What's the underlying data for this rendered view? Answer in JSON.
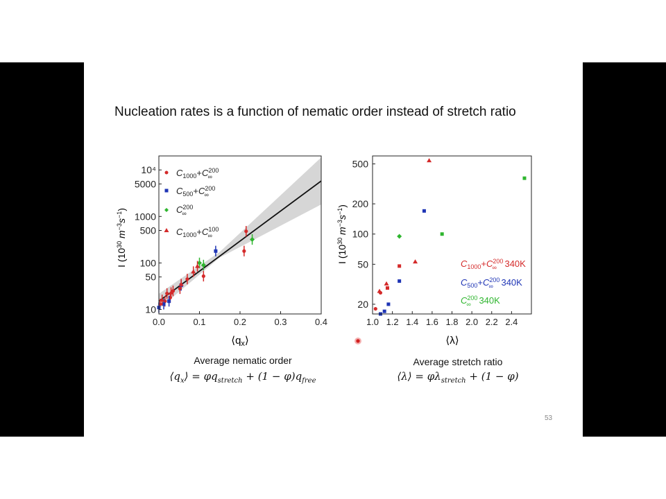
{
  "slide": {
    "title": "Nucleation rates is a function of nematic order instead of stretch ratio",
    "page_number": "53",
    "left_caption": "Average nematic order",
    "left_formula": "⟨qx⟩ = φqstretch + (1 − φ)qfree",
    "right_caption": "Average stretch ratio",
    "right_formula": "⟨λ⟩ = φλstretch + (1 − φ)"
  },
  "chart_data": [
    {
      "type": "scatter",
      "xlabel": "⟨qx⟩",
      "ylabel": "I (10^30 m^-3 s^-1)",
      "xlim": [
        0.0,
        0.4
      ],
      "ylim": [
        8,
        20000
      ],
      "yscale": "log",
      "x_ticks": [
        "0.0",
        "0.1",
        "0.2",
        "0.3",
        "0.4"
      ],
      "y_ticks": [
        {
          "value": 10,
          "label": "10"
        },
        {
          "value": 50,
          "label": "50"
        },
        {
          "value": 100,
          "label": "100"
        },
        {
          "value": 500,
          "label": "500"
        },
        {
          "value": 1000,
          "label": "1000"
        },
        {
          "value": 5000,
          "label": "5000"
        },
        {
          "value": 10000,
          "label": "10⁴"
        }
      ],
      "legend_position": "top-left",
      "fit_line": {
        "x": [
          0.0,
          0.4
        ],
        "y": [
          15,
          5800
        ],
        "band": "gray confidence band"
      },
      "series": [
        {
          "name": "C1000+C∞200",
          "color": "#d42a2a",
          "marker": "circle",
          "points": [
            [
              0.003,
              13
            ],
            [
              0.015,
              15
            ],
            [
              0.02,
              22
            ],
            [
              0.028,
              18
            ],
            [
              0.035,
              25
            ],
            [
              0.052,
              28
            ],
            [
              0.07,
              45
            ],
            [
              0.11,
              52
            ],
            [
              0.21,
              180
            ],
            [
              0.215,
              480
            ]
          ]
        },
        {
          "name": "C500+C∞200",
          "color": "#1f35b5",
          "marker": "square",
          "points": [
            [
              0.0,
              11
            ],
            [
              0.012,
              13
            ],
            [
              0.025,
              15
            ],
            [
              0.055,
              33
            ],
            [
              0.14,
              180
            ]
          ]
        },
        {
          "name": "C∞200",
          "color": "#2eb52e",
          "marker": "diamond",
          "points": [
            [
              0.1,
              100
            ],
            [
              0.11,
              90
            ],
            [
              0.23,
              320
            ]
          ]
        },
        {
          "name": "C1000+C∞100",
          "color": "#d42a2a",
          "marker": "triangle",
          "points": [
            [
              0.008,
              16
            ],
            [
              0.03,
              23
            ],
            [
              0.055,
              35
            ],
            [
              0.085,
              65
            ],
            [
              0.095,
              85
            ]
          ]
        }
      ]
    },
    {
      "type": "scatter",
      "xlabel": "⟨λ⟩",
      "ylabel": "I (10^30 m^-3 s^-1)",
      "xlim": [
        1.0,
        2.6
      ],
      "ylim": [
        16,
        600
      ],
      "yscale": "log",
      "x_ticks": [
        "1.0",
        "1.2",
        "1.4",
        "1.6",
        "1.8",
        "2.0",
        "2.2",
        "2.4"
      ],
      "y_ticks": [
        {
          "value": 20,
          "label": "20"
        },
        {
          "value": 50,
          "label": "50"
        },
        {
          "value": 100,
          "label": "100"
        },
        {
          "value": 200,
          "label": "200"
        },
        {
          "value": 500,
          "label": "500"
        }
      ],
      "legend_position": "center-right",
      "series": [
        {
          "name": "C1000+C∞200 340K",
          "color": "#d42a2a",
          "marker": "mixed",
          "points": [
            [
              1.03,
              18,
              "circle"
            ],
            [
              1.07,
              27,
              "triangle"
            ],
            [
              1.08,
              26,
              "circle"
            ],
            [
              1.14,
              32,
              "triangle"
            ],
            [
              1.15,
              29,
              "square"
            ],
            [
              1.27,
              48,
              "square"
            ],
            [
              1.43,
              53,
              "triangle"
            ],
            [
              1.57,
              540,
              "triangle"
            ]
          ]
        },
        {
          "name": "C500+C∞200 340K",
          "color": "#1f35b5",
          "marker": "square",
          "points": [
            [
              1.08,
              16
            ],
            [
              1.12,
              17
            ],
            [
              1.16,
              20
            ],
            [
              1.27,
              34
            ],
            [
              1.52,
              170
            ]
          ]
        },
        {
          "name": "C∞200 340K",
          "color": "#2eb52e",
          "marker": "mixed",
          "points": [
            [
              1.27,
              95,
              "diamond"
            ],
            [
              1.7,
              100,
              "square"
            ],
            [
              2.53,
              360,
              "square"
            ]
          ]
        }
      ]
    }
  ]
}
